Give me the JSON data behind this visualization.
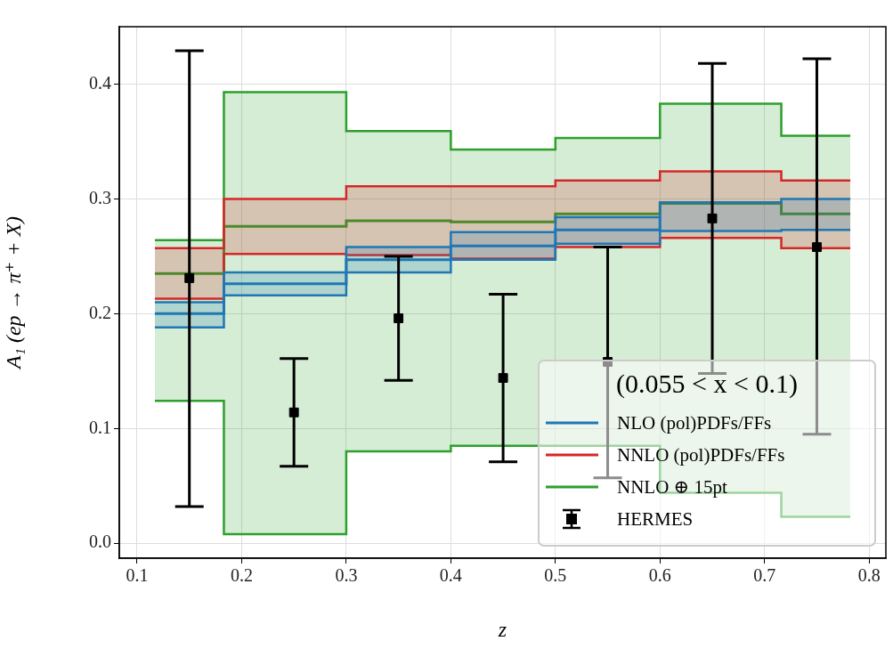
{
  "chart_data": {
    "type": "step",
    "xlabel": "z",
    "ylabel": "A₁ (ep → π⁺ + X)",
    "legend_title": "(0.055 < x < 0.1)",
    "xlim": [
      0.083,
      0.816
    ],
    "ylim": [
      -0.013,
      0.45
    ],
    "xticks": [
      0.1,
      0.2,
      0.3,
      0.4,
      0.5,
      0.6,
      0.7,
      0.8
    ],
    "yticks": [
      {
        "value": 0,
        "label": "0.0"
      },
      0.1,
      0.2,
      0.3,
      0.4
    ],
    "grid": true,
    "legend": "bottom right",
    "series": [
      {
        "name": "NNLO ⊕ 15pt",
        "color": "#2ca02c",
        "x": [
          0.117,
          0.183,
          0.3,
          0.4,
          0.5,
          0.6,
          0.716,
          0.782
        ],
        "values": [
          0.235,
          0.276,
          0.281,
          0.28,
          0.287,
          0.296,
          0.287,
          0.287
        ],
        "lower": [
          0.124,
          0.008,
          0.08,
          0.085,
          0.085,
          0.044,
          0.023,
          0.023
        ],
        "upper": [
          0.264,
          0.393,
          0.359,
          0.343,
          0.353,
          0.383,
          0.355,
          0.355
        ]
      },
      {
        "color": "#2ca02c",
        "x": [
          0.117,
          0.183,
          0.3,
          0.4,
          0.5,
          0.6,
          0.716,
          0.782
        ],
        "values": [
          0.124,
          0.008,
          0.08,
          0.085,
          0.085,
          0.044,
          0.023,
          0.023
        ]
      },
      {
        "color": "#2ca02c",
        "x": [
          0.117,
          0.183,
          0.3,
          0.4,
          0.5,
          0.6,
          0.716,
          0.782
        ],
        "values": [
          0.264,
          0.393,
          0.359,
          0.343,
          0.353,
          0.383,
          0.355,
          0.355
        ]
      },
      {
        "name": "NNLO (pol)PDFs/FFs",
        "color": "#d62728",
        "x": [
          0.117,
          0.183,
          0.3,
          0.4,
          0.5,
          0.6,
          0.716,
          0.782
        ],
        "values": [
          null,
          null,
          null,
          null,
          null,
          null,
          null,
          null
        ],
        "lower": [
          0.213,
          0.252,
          0.251,
          0.248,
          0.258,
          0.266,
          0.257,
          0.257
        ],
        "upper": [
          0.257,
          0.3,
          0.311,
          0.311,
          0.316,
          0.324,
          0.316,
          0.316
        ]
      },
      {
        "color": "#d62728",
        "x": [
          0.117,
          0.183,
          0.3,
          0.4,
          0.5,
          0.6,
          0.716,
          0.782
        ],
        "values": [
          0.213,
          0.252,
          0.251,
          0.248,
          0.258,
          0.266,
          0.257,
          0.257
        ]
      },
      {
        "color": "#d62728",
        "x": [
          0.117,
          0.183,
          0.3,
          0.4,
          0.5,
          0.6,
          0.716,
          0.782
        ],
        "values": [
          0.257,
          0.3,
          0.311,
          0.311,
          0.316,
          0.324,
          0.316,
          0.316
        ]
      },
      {
        "name": "NLO (pol)PDFs/FFs",
        "color": "#1f77b4",
        "x": [
          0.117,
          0.183,
          0.3,
          0.4,
          0.5,
          0.6,
          0.716,
          0.782
        ],
        "values": [
          0.2,
          0.226,
          0.247,
          0.259,
          0.273,
          0.285,
          null,
          null
        ],
        "lower": [
          0.188,
          0.216,
          0.236,
          0.247,
          0.261,
          0.272,
          0.273,
          0.273
        ],
        "upper": [
          0.21,
          0.236,
          0.258,
          0.271,
          0.284,
          0.297,
          0.3,
          0.3
        ]
      },
      {
        "color": "#1f77b4",
        "x": [
          0.117,
          0.183,
          0.3,
          0.4,
          0.5,
          0.6,
          0.716,
          0.782
        ],
        "values": [
          0.188,
          0.216,
          0.236,
          0.247,
          0.261,
          0.272,
          0.273,
          0.273
        ]
      },
      {
        "color": "#1f77b4",
        "x": [
          0.117,
          0.183,
          0.3,
          0.4,
          0.5,
          0.6,
          0.716,
          0.782
        ],
        "values": [
          0.21,
          0.236,
          0.258,
          0.271,
          0.284,
          0.297,
          0.3,
          0.3
        ]
      },
      {
        "name": "HERMES",
        "type": "scatter",
        "color": "#000000",
        "marker": "square",
        "x": [
          0.15,
          0.25,
          0.35,
          0.45,
          0.55,
          0.65,
          0.75
        ],
        "values": [
          0.231,
          0.114,
          0.196,
          0.144,
          0.158,
          0.283,
          0.258
        ],
        "errors": [
          [
            0.032,
            0.429
          ],
          [
            0.067,
            0.161
          ],
          [
            0.142,
            0.25
          ],
          [
            0.071,
            0.217
          ],
          [
            0.057,
            0.258
          ],
          [
            0.148,
            0.418
          ],
          [
            0.095,
            0.422
          ]
        ]
      }
    ]
  }
}
